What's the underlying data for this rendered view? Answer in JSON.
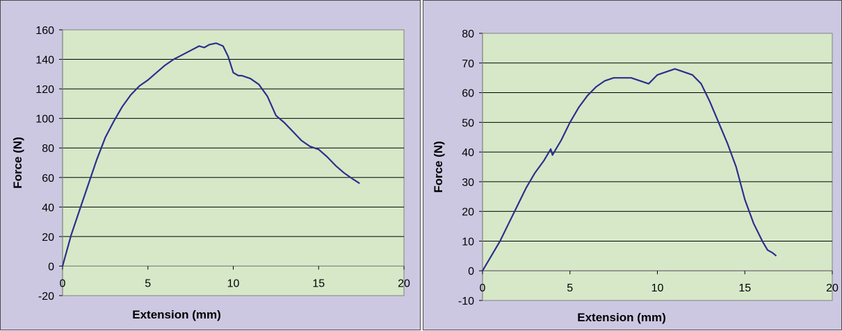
{
  "chart_data": [
    {
      "type": "line",
      "title": "",
      "xlabel": "Extension (mm)",
      "ylabel": "Force (N)",
      "xlim": [
        0,
        20
      ],
      "ylim": [
        -20,
        160
      ],
      "x_ticks": [
        "0",
        "5",
        "10",
        "15",
        "20"
      ],
      "y_ticks": [
        "-20",
        "0",
        "20",
        "40",
        "60",
        "80",
        "100",
        "120",
        "140",
        "160"
      ],
      "grid": "horizontal",
      "plot_background": "#d6e8c8",
      "line_color": "#2b2f8c",
      "series": [
        {
          "x": [
            0,
            0.5,
            1,
            1.5,
            2,
            2.5,
            3,
            3.5,
            4,
            4.5,
            5,
            5.5,
            6,
            6.5,
            7,
            7.5,
            8,
            8.3,
            8.6,
            9,
            9.4,
            9.7,
            10,
            10.3,
            10.5,
            11,
            11.5,
            12,
            12.5,
            13,
            13.5,
            14,
            14.5,
            15,
            15.5,
            16,
            16.5,
            17,
            17.4
          ],
          "y": [
            0,
            21,
            38,
            55,
            72,
            87,
            98,
            108,
            116,
            122,
            126,
            131,
            136,
            140,
            143,
            146,
            149,
            148,
            150,
            151,
            149,
            142,
            131,
            129,
            129,
            127,
            123,
            115,
            102,
            97,
            91,
            85,
            81,
            79,
            74,
            68,
            63,
            59,
            56
          ]
        }
      ]
    },
    {
      "type": "line",
      "title": "",
      "xlabel": "Extension (mm)",
      "ylabel": "Force (N)",
      "xlim": [
        0,
        20
      ],
      "ylim": [
        -10,
        80
      ],
      "x_ticks": [
        "0",
        "5",
        "10",
        "15",
        "20"
      ],
      "y_ticks": [
        "-10",
        "0",
        "10",
        "20",
        "30",
        "40",
        "50",
        "60",
        "70",
        "80"
      ],
      "grid": "horizontal",
      "plot_background": "#d6e8c8",
      "line_color": "#2b2f8c",
      "series": [
        {
          "x": [
            0,
            0.5,
            1,
            1.5,
            2,
            2.5,
            3,
            3.5,
            3.8,
            3.9,
            4.0,
            4.2,
            4.5,
            5,
            5.5,
            6,
            6.5,
            7,
            7.5,
            8,
            8.5,
            9,
            9.5,
            10,
            10.5,
            11,
            11.5,
            12,
            12.5,
            13,
            13.5,
            14,
            14.5,
            15,
            15.5,
            16,
            16.3,
            16.6,
            16.8
          ],
          "y": [
            0,
            5,
            10,
            16,
            22,
            28,
            33,
            37,
            40,
            41,
            39,
            41,
            44,
            50,
            55,
            59,
            62,
            64,
            65,
            65,
            65,
            64,
            63,
            66,
            67,
            68,
            67,
            66,
            63,
            57,
            50,
            43,
            35,
            24,
            16,
            10,
            7,
            6,
            5
          ]
        }
      ]
    }
  ]
}
